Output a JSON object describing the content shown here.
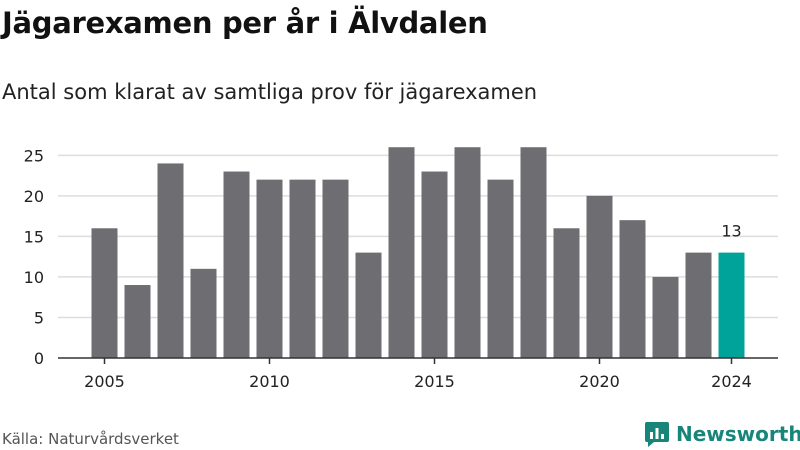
{
  "title": "Jägarexamen per år i Älvdalen",
  "subtitle": "Antal som klarat av samtliga prov för jägarexamen",
  "source": "Källa: Naturvårdsverket",
  "brand": {
    "name": "Newsworthy",
    "icon": "newsworthy-chart-icon",
    "color": "#17857a"
  },
  "chart_data": {
    "type": "bar",
    "categories": [
      2005,
      2006,
      2007,
      2008,
      2009,
      2010,
      2011,
      2012,
      2013,
      2014,
      2015,
      2016,
      2017,
      2018,
      2019,
      2020,
      2021,
      2022,
      2023,
      2024
    ],
    "values": [
      16,
      9,
      24,
      11,
      23,
      22,
      22,
      22,
      13,
      26,
      23,
      26,
      22,
      26,
      16,
      20,
      17,
      10,
      13,
      13
    ],
    "ylim": [
      0,
      28
    ],
    "yticks": [
      0,
      5,
      10,
      15,
      20,
      25
    ],
    "xticks": [
      2005,
      2010,
      2015,
      2020,
      2024
    ],
    "grid": true,
    "highlight": {
      "category": 2024,
      "label": "13"
    },
    "colors": {
      "bar": "#6d6d72",
      "highlight": "#00a39a",
      "grid": "#dddddd",
      "axis": "#333333"
    }
  }
}
